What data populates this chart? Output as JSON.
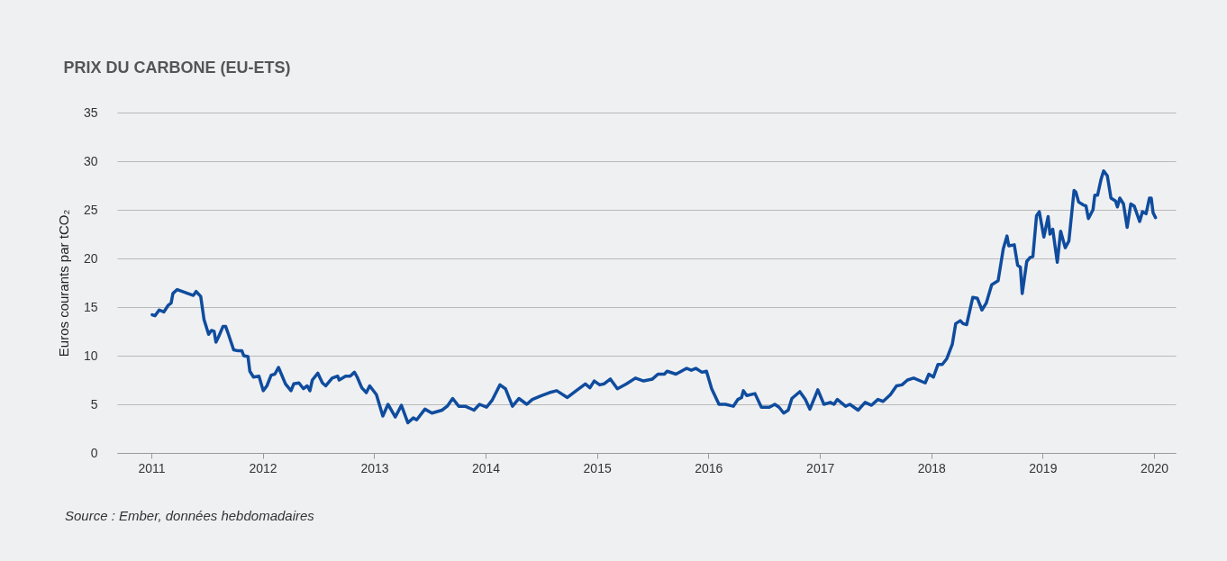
{
  "chart_data": {
    "type": "line",
    "title": "PRIX DU CARBONE (EU-ETS)",
    "ylabel": "Euros courants par tCO₂",
    "x": [
      "2011-01-04",
      "2011-01-13",
      "2011-01-27",
      "2011-02-11",
      "2011-02-26",
      "2011-03-07",
      "2011-03-13",
      "2011-03-27",
      "2011-05-19",
      "2011-05-28",
      "2011-06-12",
      "2011-06-23",
      "2011-06-29",
      "2011-07-08",
      "2011-07-17",
      "2011-07-26",
      "2011-08-01",
      "2011-08-09",
      "2011-08-24",
      "2011-09-02",
      "2011-09-11",
      "2011-09-28",
      "2011-10-13",
      "2011-10-25",
      "2011-10-31",
      "2011-11-14",
      "2011-11-20",
      "2011-12-02",
      "2011-12-20",
      "2012-01-03",
      "2012-01-15",
      "2012-01-29",
      "2012-02-10",
      "2012-02-22",
      "2012-03-16",
      "2012-04-03",
      "2012-04-12",
      "2012-04-29",
      "2012-05-14",
      "2012-05-26",
      "2012-06-04",
      "2012-06-12",
      "2012-06-30",
      "2012-07-15",
      "2012-07-26",
      "2012-08-16",
      "2012-09-03",
      "2012-09-08",
      "2012-09-29",
      "2012-10-14",
      "2012-10-28",
      "2012-11-06",
      "2012-11-21",
      "2012-12-06",
      "2012-12-17",
      "2013-01-08",
      "2013-01-29",
      "2013-02-15",
      "2013-03-11",
      "2013-03-31",
      "2013-04-21",
      "2013-05-09",
      "2013-05-20",
      "2013-06-16",
      "2013-07-09",
      "2013-08-11",
      "2013-08-28",
      "2013-09-15",
      "2013-10-05",
      "2013-10-26",
      "2013-11-24",
      "2013-12-12",
      "2014-01-04",
      "2014-01-22",
      "2014-02-17",
      "2014-03-07",
      "2014-03-30",
      "2014-04-20",
      "2014-05-16",
      "2014-06-03",
      "2014-07-03",
      "2014-07-29",
      "2014-08-22",
      "2014-09-26",
      "2014-10-25",
      "2014-11-24",
      "2014-12-09",
      "2014-12-23",
      "2015-01-10",
      "2015-01-24",
      "2015-02-14",
      "2015-03-09",
      "2015-04-08",
      "2015-05-07",
      "2015-06-03",
      "2015-07-02",
      "2015-07-20",
      "2015-08-10",
      "2015-08-19",
      "2015-09-17",
      "2015-10-22",
      "2015-11-06",
      "2015-11-21",
      "2015-12-11",
      "2015-12-26",
      "2016-01-12",
      "2016-02-05",
      "2016-02-26",
      "2016-03-23",
      "2016-04-07",
      "2016-04-19",
      "2016-04-25",
      "2016-05-06",
      "2016-06-02",
      "2016-06-23",
      "2016-07-19",
      "2016-08-06",
      "2016-08-20",
      "2016-09-04",
      "2016-09-19",
      "2016-10-01",
      "2016-10-27",
      "2016-11-14",
      "2016-11-29",
      "2016-12-25",
      "2017-01-14",
      "2017-02-04",
      "2017-02-16",
      "2017-02-27",
      "2017-03-26",
      "2017-04-09",
      "2017-05-06",
      "2017-05-29",
      "2017-06-19",
      "2017-07-10",
      "2017-07-27",
      "2017-08-20",
      "2017-09-09",
      "2017-09-27",
      "2017-10-15",
      "2017-11-04",
      "2017-12-12",
      "2017-12-24",
      "2018-01-08",
      "2018-01-23",
      "2018-02-06",
      "2018-02-21",
      "2018-03-11",
      "2018-03-22",
      "2018-04-06",
      "2018-04-15",
      "2018-04-27",
      "2018-05-17",
      "2018-06-01",
      "2018-06-16",
      "2018-06-30",
      "2018-07-18",
      "2018-08-08",
      "2018-08-25",
      "2018-09-06",
      "2018-09-12",
      "2018-09-30",
      "2018-10-11",
      "2018-10-20",
      "2018-10-26",
      "2018-11-10",
      "2018-11-21",
      "2018-11-30",
      "2018-12-12",
      "2018-12-21",
      "2019-01-05",
      "2019-01-19",
      "2019-01-25",
      "2019-02-03",
      "2019-02-18",
      "2019-03-01",
      "2019-03-16",
      "2019-03-28",
      "2019-04-14",
      "2019-04-20",
      "2019-04-29",
      "2019-05-14",
      "2019-05-23",
      "2019-05-31",
      "2019-06-15",
      "2019-06-21",
      "2019-06-30",
      "2019-07-12",
      "2019-07-20",
      "2019-08-01",
      "2019-08-13",
      "2019-08-28",
      "2019-09-03",
      "2019-09-11",
      "2019-09-23",
      "2019-10-05",
      "2019-10-17",
      "2019-10-28",
      "2019-11-15",
      "2019-11-24",
      "2019-12-06",
      "2019-12-17",
      "2019-12-23",
      "2019-12-29",
      "2020-01-06"
    ],
    "values": [
      14.2,
      14.1,
      14.7,
      14.5,
      15.2,
      15.4,
      16.4,
      16.8,
      16.2,
      16.6,
      16.1,
      13.7,
      13.1,
      12.2,
      12.6,
      12.5,
      11.4,
      11.9,
      13.0,
      13.0,
      12.2,
      10.6,
      10.5,
      10.5,
      10.0,
      9.9,
      8.4,
      7.8,
      7.9,
      6.4,
      6.9,
      8.0,
      8.1,
      8.8,
      7.1,
      6.4,
      7.1,
      7.2,
      6.6,
      6.9,
      6.4,
      7.5,
      8.2,
      7.2,
      6.9,
      7.7,
      7.9,
      7.5,
      7.9,
      7.9,
      8.3,
      7.8,
      6.7,
      6.2,
      6.9,
      6.0,
      3.8,
      5.0,
      3.7,
      4.9,
      3.1,
      3.6,
      3.4,
      4.5,
      4.1,
      4.4,
      4.8,
      5.6,
      4.8,
      4.8,
      4.4,
      5.0,
      4.7,
      5.4,
      7.0,
      6.6,
      4.8,
      5.6,
      5.0,
      5.5,
      5.9,
      6.2,
      6.4,
      5.7,
      6.4,
      7.1,
      6.7,
      7.4,
      7.0,
      7.1,
      7.6,
      6.6,
      7.1,
      7.7,
      7.4,
      7.6,
      8.1,
      8.1,
      8.4,
      8.1,
      8.7,
      8.5,
      8.7,
      8.3,
      8.4,
      6.6,
      5.0,
      5.0,
      4.8,
      5.5,
      5.7,
      6.4,
      5.9,
      6.1,
      4.7,
      4.7,
      5.0,
      4.7,
      4.1,
      4.4,
      5.6,
      6.3,
      5.5,
      4.5,
      6.5,
      5.0,
      5.2,
      5.0,
      5.5,
      4.8,
      5.0,
      4.4,
      5.2,
      4.9,
      5.5,
      5.3,
      6.0,
      6.9,
      7.0,
      7.5,
      7.7,
      7.2,
      8.1,
      7.8,
      9.1,
      9.1,
      9.7,
      11.2,
      13.3,
      13.6,
      13.3,
      13.2,
      16.0,
      15.9,
      14.7,
      15.4,
      17.3,
      17.7,
      21.0,
      22.3,
      21.3,
      21.4,
      19.3,
      19.1,
      16.4,
      19.7,
      20.1,
      20.2,
      24.4,
      24.8,
      22.2,
      24.3,
      22.5,
      23.0,
      19.6,
      22.8,
      21.1,
      21.8,
      27.0,
      26.8,
      25.8,
      25.5,
      25.4,
      24.1,
      25.0,
      26.5,
      26.5,
      28.2,
      29.0,
      28.5,
      26.2,
      25.9,
      25.3,
      26.2,
      25.6,
      23.2,
      25.6,
      25.4,
      23.8,
      24.8,
      24.6,
      26.2,
      26.2,
      24.7,
      24.2
    ],
    "color": "#0f4c9e",
    "xlim": [
      "2010-09-11",
      "2020-03-12"
    ],
    "xticks": [
      "2011",
      "2012",
      "2013",
      "2014",
      "2015",
      "2016",
      "2017",
      "2018",
      "2019",
      "2020"
    ],
    "ylim": [
      0,
      35
    ],
    "yticks": [
      0,
      5,
      10,
      15,
      20,
      25,
      30,
      35
    ],
    "grid": "y",
    "annotations": [
      "Source : Ember, données hebdomadaires"
    ]
  }
}
